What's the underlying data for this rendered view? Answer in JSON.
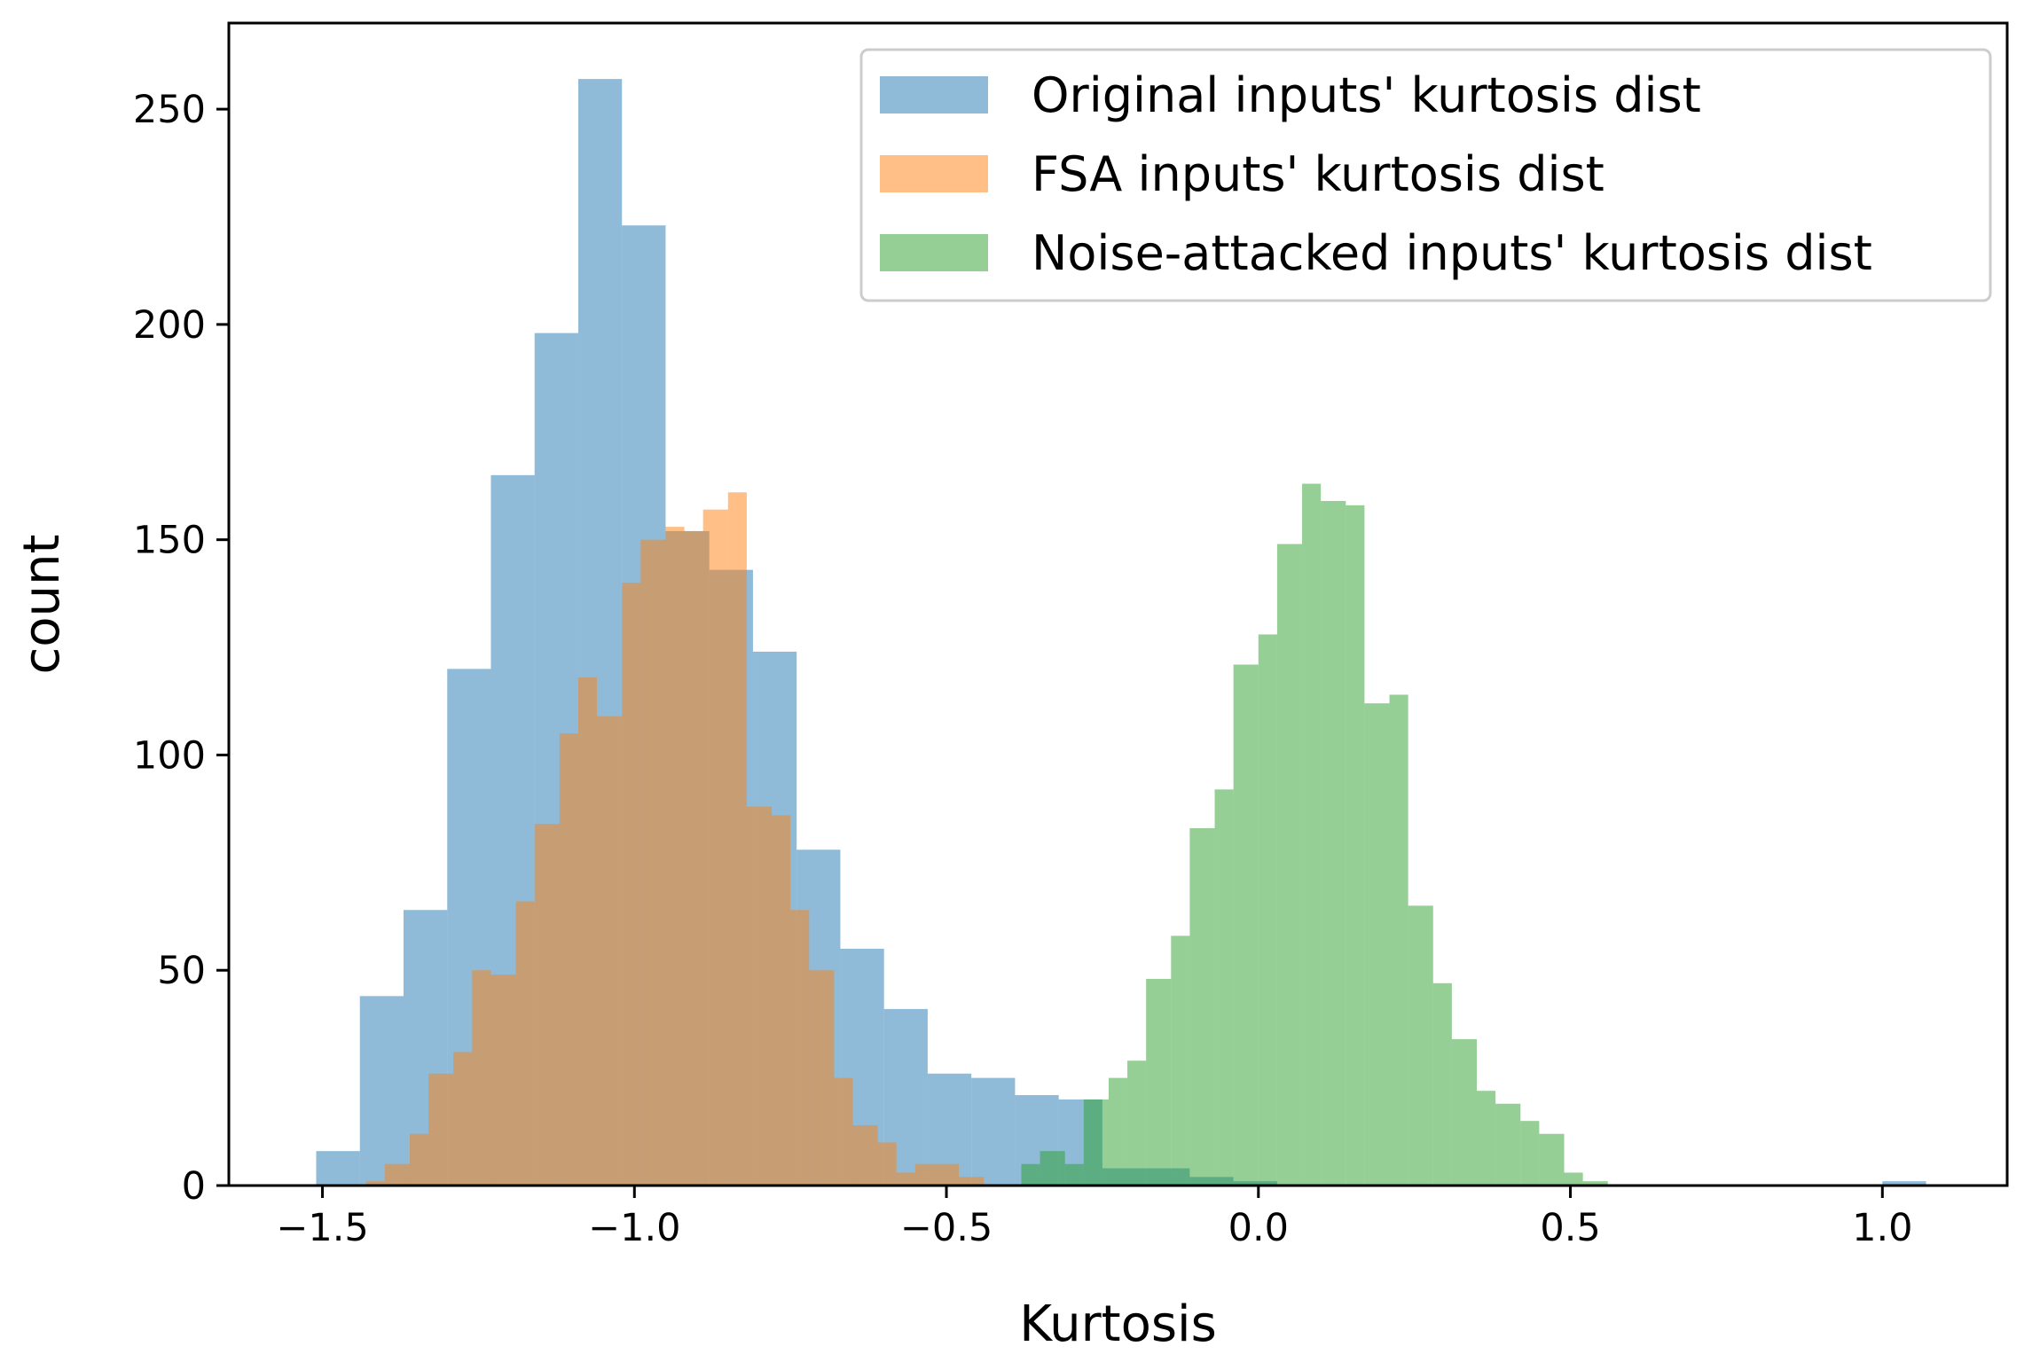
{
  "chart_data": {
    "type": "bar",
    "xlabel": "Kurtosis",
    "ylabel": "count",
    "xlim": [
      -1.65,
      1.2
    ],
    "ylim": [
      0,
      270
    ],
    "xticks": [
      -1.5,
      -1.0,
      -0.5,
      0.0,
      0.5,
      1.0
    ],
    "xtick_labels": [
      "−1.5",
      "−1.0",
      "−0.5",
      "0.0",
      "0.5",
      "1.0"
    ],
    "yticks": [
      0,
      50,
      100,
      150,
      200,
      250
    ],
    "ytick_labels": [
      "0",
      "50",
      "100",
      "150",
      "200",
      "250"
    ],
    "grid": false,
    "legend_position": "top-right",
    "series": [
      {
        "name": "Original inputs' kurtosis dist",
        "color": "#1f77b4",
        "opacity": 0.5,
        "bins": [
          [
            -1.51,
            -1.44,
            8
          ],
          [
            -1.44,
            -1.37,
            44
          ],
          [
            -1.37,
            -1.3,
            64
          ],
          [
            -1.3,
            -1.23,
            120
          ],
          [
            -1.23,
            -1.16,
            165
          ],
          [
            -1.16,
            -1.09,
            198
          ],
          [
            -1.09,
            -1.02,
            257
          ],
          [
            -1.02,
            -0.95,
            223
          ],
          [
            -0.95,
            -0.88,
            152
          ],
          [
            -0.88,
            -0.81,
            143
          ],
          [
            -0.81,
            -0.74,
            124
          ],
          [
            -0.74,
            -0.67,
            78
          ],
          [
            -0.67,
            -0.6,
            55
          ],
          [
            -0.6,
            -0.53,
            41
          ],
          [
            -0.53,
            -0.46,
            26
          ],
          [
            -0.46,
            -0.39,
            25
          ],
          [
            -0.39,
            -0.32,
            21
          ],
          [
            -0.32,
            -0.25,
            20
          ],
          [
            -0.25,
            -0.18,
            4
          ],
          [
            -0.18,
            -0.11,
            4
          ],
          [
            -0.11,
            -0.04,
            2
          ],
          [
            -0.04,
            0.03,
            1
          ],
          [
            1.0,
            1.07,
            1
          ]
        ]
      },
      {
        "name": "FSA inputs' kurtosis dist",
        "color": "#ff7f0e",
        "opacity": 0.5,
        "bins": [
          [
            -1.43,
            -1.4,
            1
          ],
          [
            -1.4,
            -1.36,
            5
          ],
          [
            -1.36,
            -1.33,
            12
          ],
          [
            -1.33,
            -1.29,
            26
          ],
          [
            -1.29,
            -1.26,
            31
          ],
          [
            -1.26,
            -1.23,
            50
          ],
          [
            -1.23,
            -1.19,
            49
          ],
          [
            -1.19,
            -1.16,
            66
          ],
          [
            -1.16,
            -1.12,
            84
          ],
          [
            -1.12,
            -1.09,
            105
          ],
          [
            -1.09,
            -1.06,
            118
          ],
          [
            -1.06,
            -1.02,
            109
          ],
          [
            -1.02,
            -0.99,
            140
          ],
          [
            -0.99,
            -0.95,
            150
          ],
          [
            -0.95,
            -0.92,
            153
          ],
          [
            -0.92,
            -0.89,
            152
          ],
          [
            -0.89,
            -0.85,
            157
          ],
          [
            -0.85,
            -0.82,
            161
          ],
          [
            -0.82,
            -0.78,
            88
          ],
          [
            -0.78,
            -0.75,
            86
          ],
          [
            -0.75,
            -0.72,
            64
          ],
          [
            -0.72,
            -0.68,
            50
          ],
          [
            -0.68,
            -0.65,
            25
          ],
          [
            -0.65,
            -0.61,
            14
          ],
          [
            -0.61,
            -0.58,
            10
          ],
          [
            -0.58,
            -0.55,
            3
          ],
          [
            -0.55,
            -0.51,
            5
          ],
          [
            -0.51,
            -0.48,
            5
          ],
          [
            -0.48,
            -0.44,
            2
          ]
        ]
      },
      {
        "name": "Noise-attacked inputs' kurtosis dist",
        "color": "#2ca02c",
        "opacity": 0.5,
        "bins": [
          [
            -0.38,
            -0.35,
            5
          ],
          [
            -0.35,
            -0.31,
            8
          ],
          [
            -0.31,
            -0.28,
            5
          ],
          [
            -0.28,
            -0.24,
            20
          ],
          [
            -0.24,
            -0.21,
            25
          ],
          [
            -0.21,
            -0.18,
            29
          ],
          [
            -0.18,
            -0.14,
            48
          ],
          [
            -0.14,
            -0.11,
            58
          ],
          [
            -0.11,
            -0.07,
            83
          ],
          [
            -0.07,
            -0.04,
            92
          ],
          [
            -0.04,
            0.0,
            121
          ],
          [
            0.0,
            0.03,
            128
          ],
          [
            0.03,
            0.07,
            149
          ],
          [
            0.07,
            0.1,
            163
          ],
          [
            0.1,
            0.14,
            159
          ],
          [
            0.14,
            0.17,
            158
          ],
          [
            0.17,
            0.21,
            112
          ],
          [
            0.21,
            0.24,
            114
          ],
          [
            0.24,
            0.28,
            65
          ],
          [
            0.28,
            0.31,
            47
          ],
          [
            0.31,
            0.35,
            34
          ],
          [
            0.35,
            0.38,
            22
          ],
          [
            0.38,
            0.42,
            19
          ],
          [
            0.42,
            0.45,
            15
          ],
          [
            0.45,
            0.49,
            12
          ],
          [
            0.49,
            0.52,
            3
          ],
          [
            0.52,
            0.56,
            1
          ]
        ]
      }
    ]
  }
}
